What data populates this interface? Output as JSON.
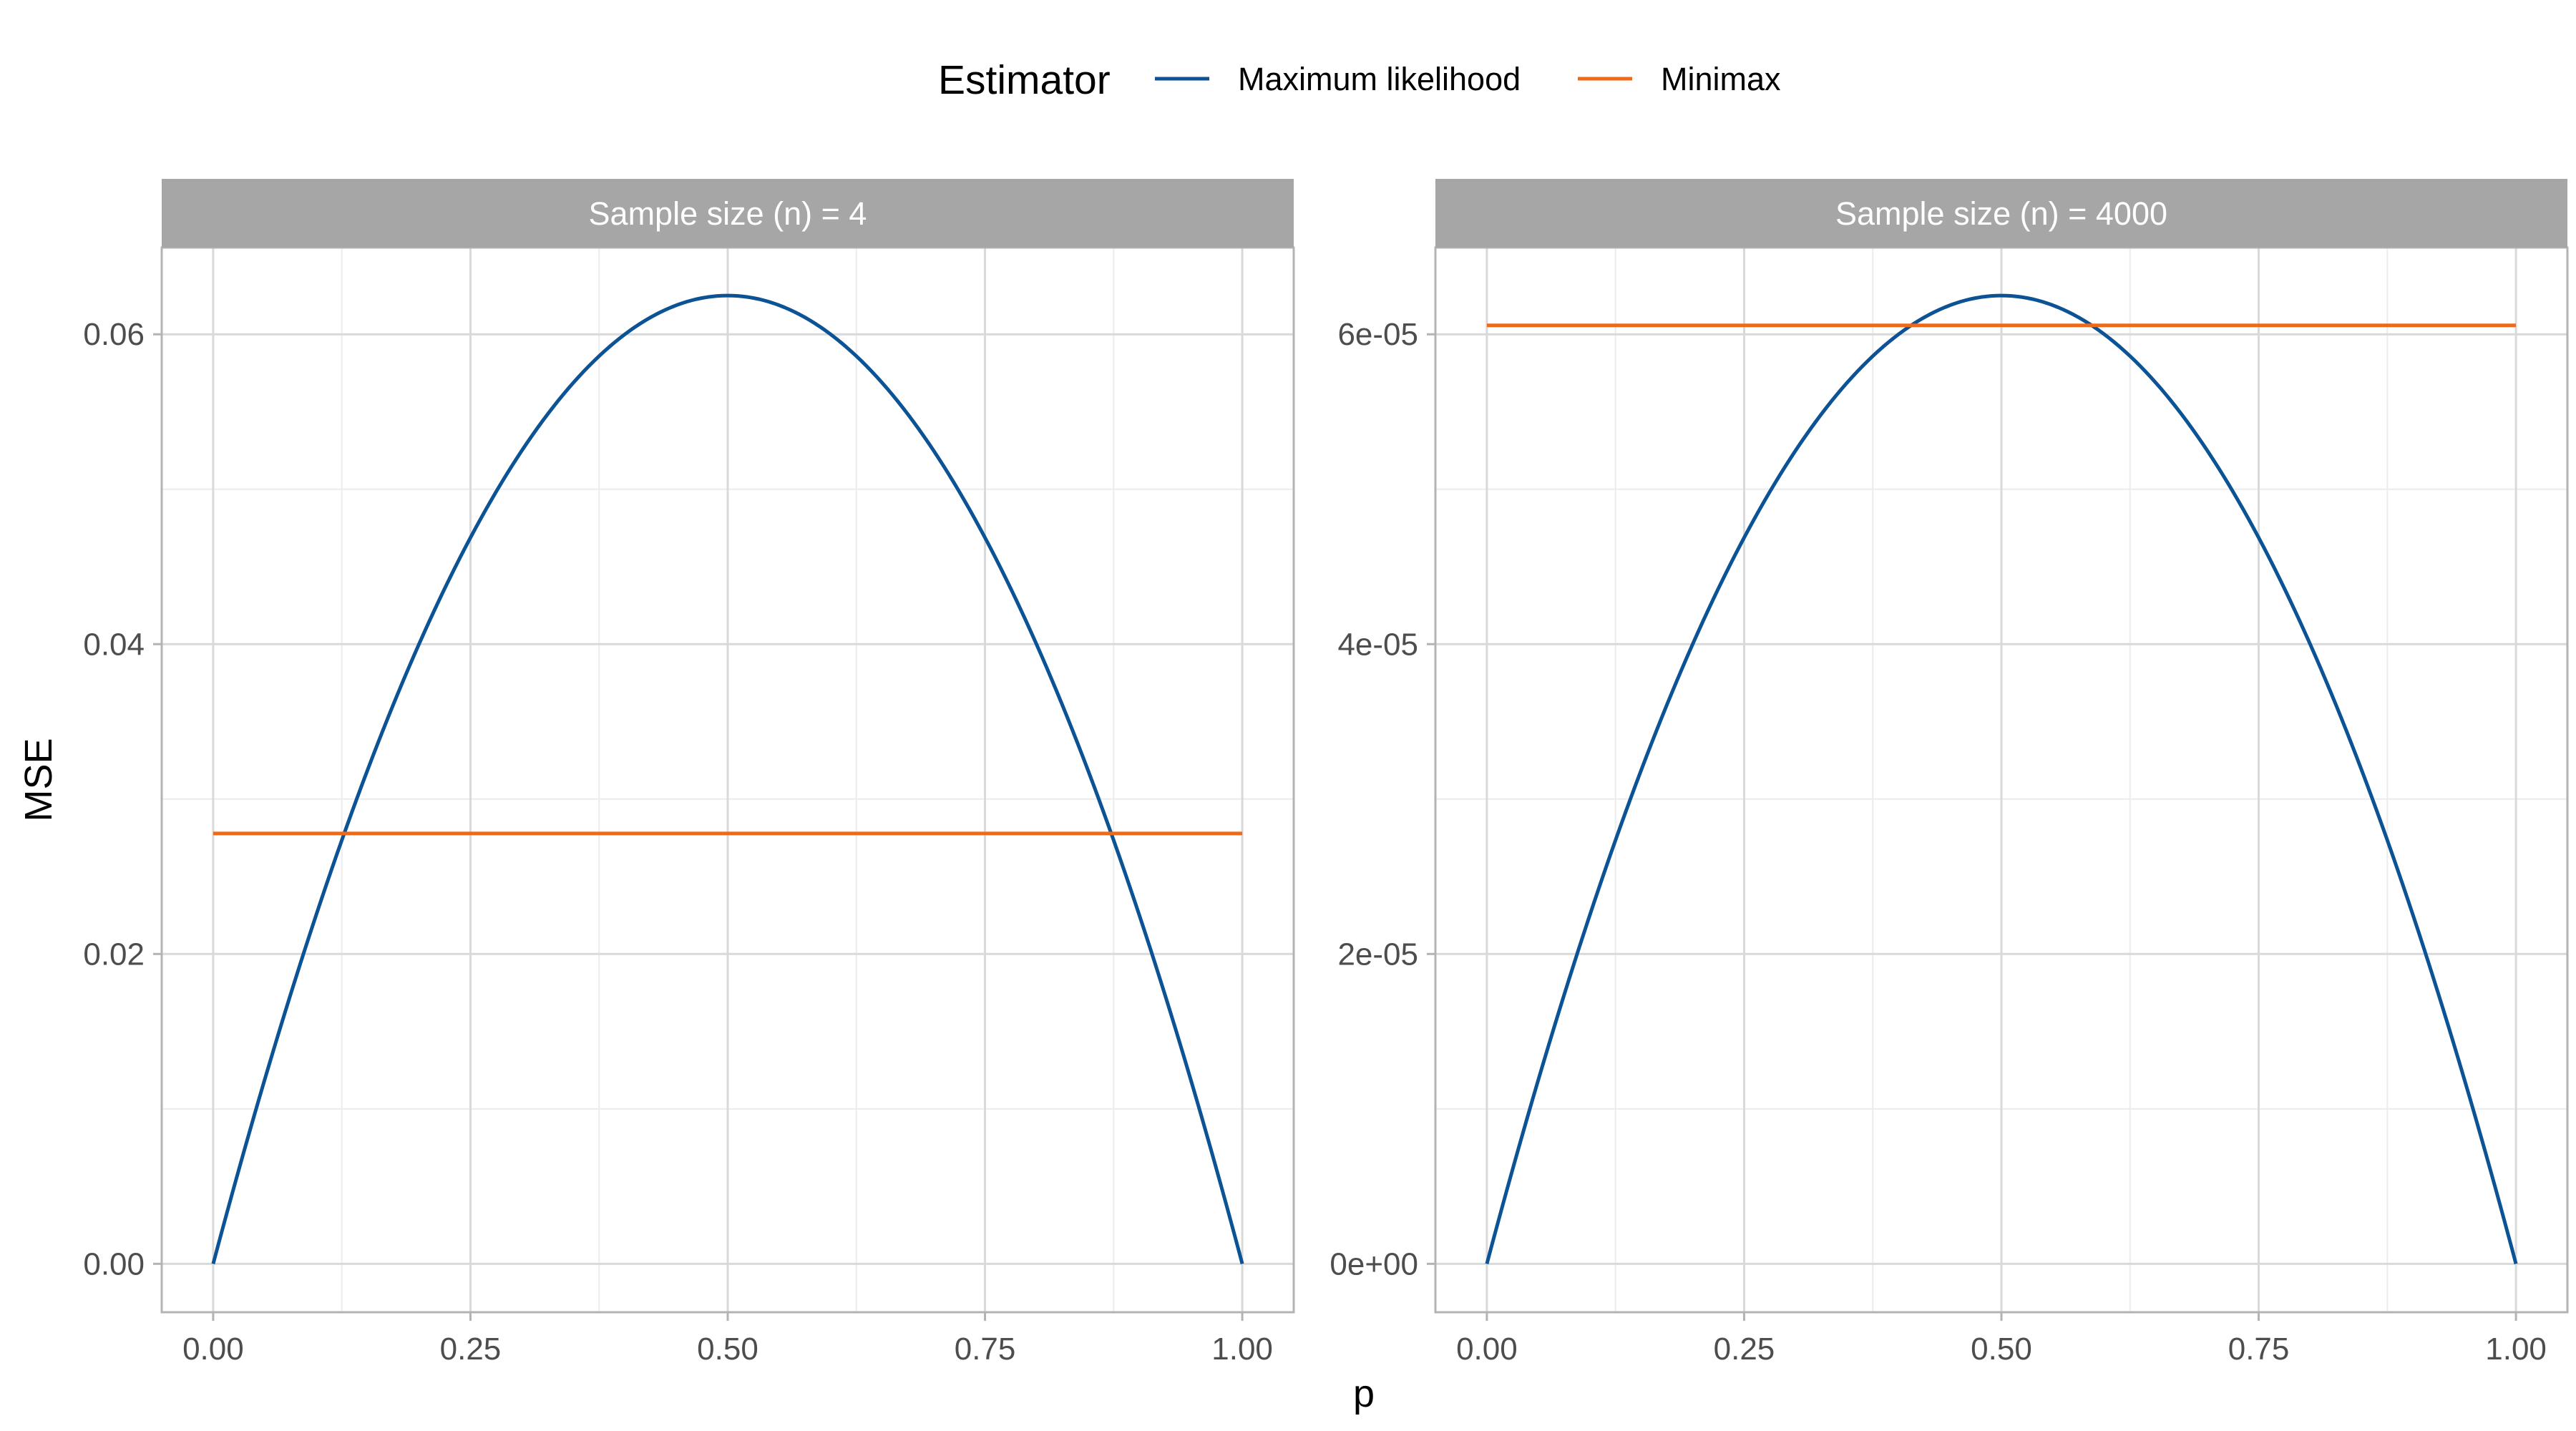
{
  "chart_data": {
    "type": "line",
    "xlabel": "p",
    "ylabel": "MSE",
    "legend": {
      "title": "Estimator",
      "position": "top",
      "entries": [
        {
          "name": "Maximum likelihood",
          "color": "#0b5394"
        },
        {
          "name": "Minimax",
          "color": "#ee6a1b"
        }
      ]
    },
    "grid": true,
    "colors": {
      "strip_background": "#a6a6a6",
      "strip_text": "#ffffff",
      "panel_border": "#b3b3b3",
      "grid_major": "#d9d9d9",
      "grid_minor": "#ececec"
    },
    "panels": [
      {
        "title": "Sample size (n) = 4",
        "n": 4,
        "x_ticks": [
          "0.00",
          "0.25",
          "0.50",
          "0.75",
          "1.00"
        ],
        "x_tick_values": [
          0,
          0.25,
          0.5,
          0.75,
          1
        ],
        "y_ticks": [
          "0.00",
          "0.02",
          "0.04",
          "0.06"
        ],
        "y_tick_values": [
          0,
          0.02,
          0.04,
          0.06
        ],
        "xlim": [
          -0.05,
          1.05
        ],
        "ylim": [
          -0.003125,
          0.0656
        ],
        "series": [
          {
            "name": "Maximum likelihood",
            "formula": "p(1-p)/n",
            "x": [
              0,
              0.05,
              0.1,
              0.15,
              0.2,
              0.25,
              0.3,
              0.35,
              0.4,
              0.45,
              0.5,
              0.55,
              0.6,
              0.65,
              0.7,
              0.75,
              0.8,
              0.85,
              0.9,
              0.95,
              1
            ],
            "y": [
              0,
              0.011875,
              0.0225,
              0.031875,
              0.04,
              0.046875,
              0.0525,
              0.056875,
              0.06,
              0.061875,
              0.0625,
              0.061875,
              0.06,
              0.056875,
              0.0525,
              0.046875,
              0.04,
              0.031875,
              0.0225,
              0.011875,
              0
            ]
          },
          {
            "name": "Minimax",
            "formula": "1/(4(sqrt(n)+1)^2)",
            "x": [
              0,
              1
            ],
            "y": [
              0.027778,
              0.027778
            ]
          }
        ]
      },
      {
        "title": "Sample size (n) = 4000",
        "n": 4000,
        "x_ticks": [
          "0.00",
          "0.25",
          "0.50",
          "0.75",
          "1.00"
        ],
        "x_tick_values": [
          0,
          0.25,
          0.5,
          0.75,
          1
        ],
        "y_ticks": [
          "0e+00",
          "2e-05",
          "4e-05",
          "6e-05"
        ],
        "y_tick_values": [
          0,
          2e-05,
          4e-05,
          6e-05
        ],
        "xlim": [
          -0.05,
          1.05
        ],
        "ylim": [
          -3.125e-06,
          6.56e-05
        ],
        "series": [
          {
            "name": "Maximum likelihood",
            "formula": "p(1-p)/n",
            "x": [
              0,
              0.05,
              0.1,
              0.15,
              0.2,
              0.25,
              0.3,
              0.35,
              0.4,
              0.45,
              0.5,
              0.55,
              0.6,
              0.65,
              0.7,
              0.75,
              0.8,
              0.85,
              0.9,
              0.95,
              1
            ],
            "y": [
              0,
              1.1875e-05,
              2.25e-05,
              3.1875e-05,
              4e-05,
              4.6875e-05,
              5.25e-05,
              5.6875e-05,
              6e-05,
              6.1875e-05,
              6.25e-05,
              6.1875e-05,
              6e-05,
              5.6875e-05,
              5.25e-05,
              4.6875e-05,
              4e-05,
              3.1875e-05,
              2.25e-05,
              1.1875e-05,
              0
            ]
          },
          {
            "name": "Minimax",
            "formula": "1/(4(sqrt(n)+1)^2)",
            "x": [
              0,
              1
            ],
            "y": [
              6.058e-05,
              6.058e-05
            ]
          }
        ]
      }
    ]
  }
}
